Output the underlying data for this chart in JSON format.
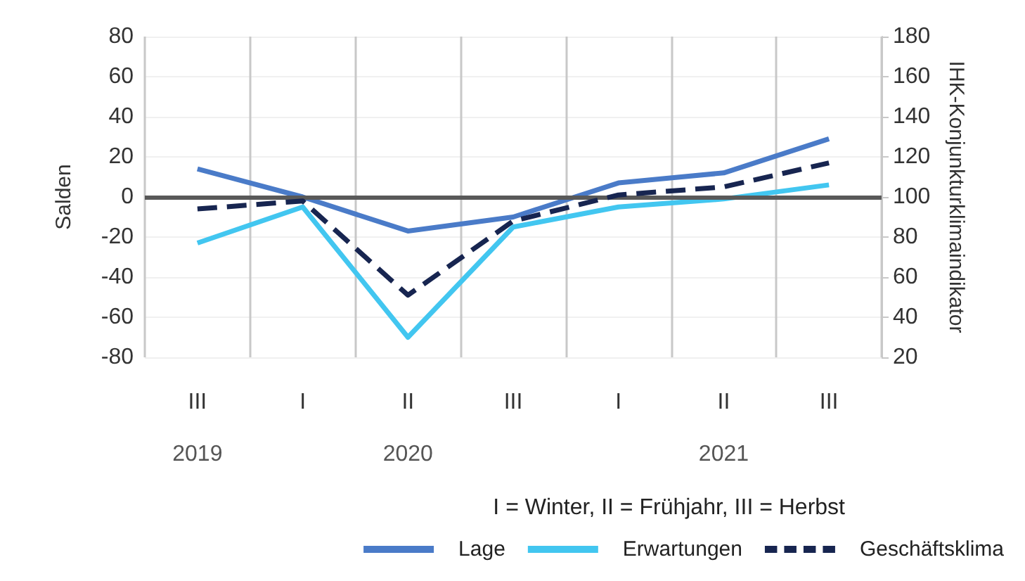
{
  "chart_data": {
    "type": "line",
    "ylabel": "Salden",
    "y2label": "IHK-Konjunkturklimaindikator",
    "categories": [
      "III\n2019",
      "I",
      "II\n2020",
      "III",
      "I",
      "II\n2021",
      "III"
    ],
    "series": [
      {
        "name": "Lage",
        "color": "#4a7bc8",
        "values": [
          14,
          0,
          -17,
          -10,
          7,
          12,
          29
        ]
      },
      {
        "name": "Erwartungen",
        "color": "#42c6f0",
        "values": [
          -23,
          -5,
          -70,
          -15,
          -5,
          -1,
          6
        ]
      },
      {
        "name": "Geschäftsklima",
        "color": "#172550",
        "values": [
          94,
          98,
          51,
          88,
          101,
          105,
          117
        ],
        "axis": "y2",
        "line_style": "dashed"
      }
    ],
    "ylim": [
      -80,
      80
    ],
    "yticks": [
      -80,
      -60,
      -40,
      -20,
      0,
      20,
      40,
      60,
      80
    ],
    "y2lim": [
      20,
      180
    ],
    "y2ticks": [
      20,
      40,
      60,
      80,
      100,
      120,
      140,
      160,
      180
    ],
    "ref_lines": [
      {
        "axis": "y",
        "value": 0,
        "color": "#595959"
      }
    ],
    "annotations": [
      "I = Winter, II = Frühjahr, III = Herbst"
    ],
    "grid": true,
    "legend": "bottom",
    "marker": "none",
    "line_style": "solid"
  }
}
